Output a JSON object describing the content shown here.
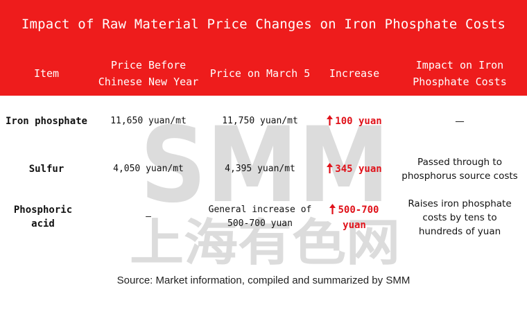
{
  "title": "Impact of Raw Material Price Changes on Iron Phosphate Costs",
  "columns": [
    {
      "line1": "Item",
      "line2": ""
    },
    {
      "line1": "Price Before",
      "line2": "Chinese New Year"
    },
    {
      "line1": "Price on March 5",
      "line2": ""
    },
    {
      "line1": "Increase",
      "line2": ""
    },
    {
      "line1": "Impact on Iron",
      "line2": "Phosphate Costs"
    }
  ],
  "rows": [
    {
      "item": [
        "Iron phosphate"
      ],
      "before": [
        "11,650 yuan/mt"
      ],
      "march5": [
        "11,750 yuan/mt"
      ],
      "increase": [
        "100 yuan"
      ],
      "impact": [
        "—"
      ]
    },
    {
      "item": [
        "Sulfur"
      ],
      "before": [
        "4,050 yuan/mt"
      ],
      "march5": [
        "4,395 yuan/mt"
      ],
      "increase": [
        "345 yuan"
      ],
      "impact": [
        "Passed through to",
        "phosphorus source costs"
      ]
    },
    {
      "item": [
        "Phosphoric",
        "acid"
      ],
      "before": [
        "—"
      ],
      "march5": [
        "General increase of",
        "500-700 yuan"
      ],
      "increase": [
        "500-700",
        "yuan"
      ],
      "impact": [
        "Raises iron phosphate",
        "costs by tens to",
        "hundreds of yuan"
      ]
    }
  ],
  "watermark": {
    "logo": "SMM",
    "chinese": "上海有色网"
  },
  "source": "Source:  Market information, compiled and summarized by SMM",
  "colors": {
    "header": "#ee1c1c",
    "increase": "#e0121a",
    "watermark": "#dcdcdc"
  },
  "icons": {
    "increase_arrow": "up-arrow-icon"
  }
}
